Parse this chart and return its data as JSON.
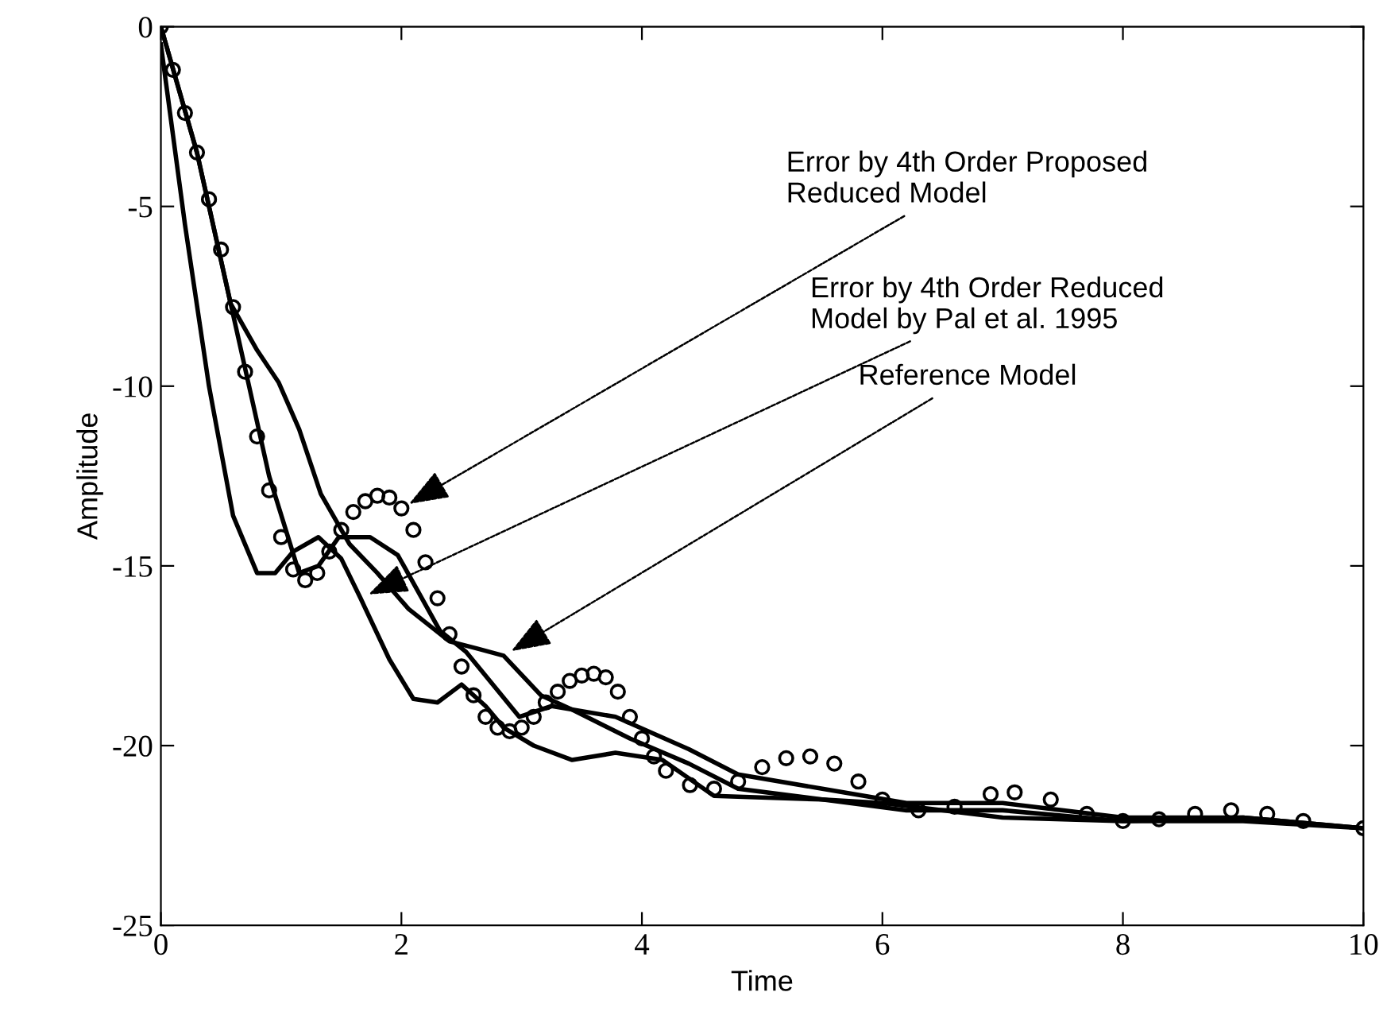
{
  "chart_data": {
    "type": "line",
    "xlabel": "Time",
    "ylabel": "Amplitude",
    "xlim": [
      0,
      10
    ],
    "ylim": [
      -25,
      0
    ],
    "xticks": [
      0,
      2,
      4,
      6,
      8,
      10
    ],
    "yticks": [
      -25,
      -20,
      -15,
      -10,
      -5,
      0
    ],
    "grid": false,
    "legend": false,
    "series": [
      {
        "type": "scatter",
        "color": "#000000",
        "marker": "circle",
        "x": [
          0,
          0.1,
          0.2,
          0.3,
          0.4,
          0.5,
          0.6,
          0.7,
          0.8,
          0.9,
          1.0,
          1.1,
          1.2,
          1.3,
          1.4,
          1.5,
          1.6,
          1.7,
          1.8,
          1.9,
          2.0,
          2.1,
          2.2,
          2.3,
          2.4,
          2.5,
          2.6,
          2.7,
          2.8,
          2.9,
          3.0,
          3.1,
          3.2,
          3.3,
          3.4,
          3.5,
          3.6,
          3.7,
          3.8,
          3.9,
          4.0,
          4.1,
          4.2,
          4.4,
          4.6,
          4.8,
          5.0,
          5.2,
          5.4,
          5.6,
          5.8,
          6.0,
          6.3,
          6.6,
          6.9,
          7.1,
          7.4,
          7.7,
          8.0,
          8.3,
          8.6,
          8.9,
          9.2,
          9.5,
          10
        ],
        "values": [
          0,
          -1.2,
          -2.4,
          -3.5,
          -4.8,
          -6.2,
          -7.8,
          -9.6,
          -11.4,
          -12.9,
          -14.2,
          -15.1,
          -15.4,
          -15.2,
          -14.6,
          -14.0,
          -13.5,
          -13.2,
          -13.05,
          -13.1,
          -13.4,
          -14.0,
          -14.9,
          -15.9,
          -16.9,
          -17.8,
          -18.6,
          -19.2,
          -19.5,
          -19.6,
          -19.5,
          -19.2,
          -18.8,
          -18.5,
          -18.2,
          -18.05,
          -18.0,
          -18.1,
          -18.5,
          -19.2,
          -19.8,
          -20.3,
          -20.7,
          -21.1,
          -21.2,
          -21.0,
          -20.6,
          -20.35,
          -20.3,
          -20.5,
          -21.0,
          -21.5,
          -21.8,
          -21.7,
          -21.35,
          -21.3,
          -21.5,
          -21.9,
          -22.1,
          -22.05,
          -21.9,
          -21.8,
          -21.9,
          -22.1,
          -22.3
        ]
      },
      {
        "color": "#000000",
        "marker": "none",
        "line_style": "solid",
        "x": [
          0,
          0.2,
          0.4,
          0.6,
          0.8,
          0.95,
          1.1,
          1.31,
          1.5,
          1.66,
          1.9,
          2.1,
          2.3,
          2.5,
          2.7,
          2.85,
          3.1,
          3.42,
          3.78,
          4.17,
          4.6,
          5.5,
          6,
          7,
          8,
          9,
          10
        ],
        "values": [
          -0.5,
          -5.5,
          -10,
          -13.6,
          -15.2,
          -15.2,
          -14.6,
          -14.2,
          -14.8,
          -15.9,
          -17.6,
          -18.7,
          -18.8,
          -18.3,
          -18.9,
          -19.5,
          -20.0,
          -20.4,
          -20.2,
          -20.4,
          -21.4,
          -21.5,
          -21.6,
          -22,
          -22.1,
          -22.1,
          -22.3
        ]
      },
      {
        "color": "#000000",
        "marker": "none",
        "line_style": "solid",
        "x": [
          0,
          0.3,
          0.6,
          0.9,
          1.15,
          1.31,
          1.48,
          1.74,
          1.97,
          2.32,
          2.54,
          2.98,
          3.25,
          3.78,
          4.39,
          4.8,
          5.5,
          6.2,
          7,
          8,
          9,
          10
        ],
        "values": [
          0,
          -3.5,
          -8,
          -12.5,
          -15.2,
          -15,
          -14.2,
          -14.2,
          -14.7,
          -16.8,
          -17.4,
          -19.2,
          -18.9,
          -19.2,
          -20.1,
          -20.8,
          -21.2,
          -21.6,
          -21.6,
          -22,
          -22,
          -22.3
        ]
      },
      {
        "color": "#000000",
        "marker": "none",
        "line_style": "solid",
        "x": [
          0,
          0.3,
          0.58,
          0.8,
          0.98,
          1.15,
          1.33,
          1.57,
          1.8,
          2.06,
          2.4,
          2.63,
          2.85,
          3.16,
          3.42,
          3.9,
          4.39,
          4.8,
          5.5,
          6.2,
          7,
          8,
          9,
          10
        ],
        "values": [
          0,
          -3.5,
          -7.7,
          -9,
          -9.9,
          -11.2,
          -13,
          -14.4,
          -15.2,
          -16.2,
          -17.1,
          -17.3,
          -17.5,
          -18.6,
          -19.0,
          -19.8,
          -20.5,
          -21.2,
          -21.5,
          -21.8,
          -21.8,
          -22.1,
          -22,
          -22.3
        ]
      }
    ],
    "annotations": [
      {
        "text": "Error by 4th Order Proposed\nReduced Model",
        "x": 2.0,
        "y": -13.4
      },
      {
        "text": "Error by 4th Order Reduced\nModel by Pal et al. 1995",
        "x": 1.66,
        "y": -15.9
      },
      {
        "text": "Reference Model",
        "x": 2.85,
        "y": -17.5
      }
    ]
  }
}
